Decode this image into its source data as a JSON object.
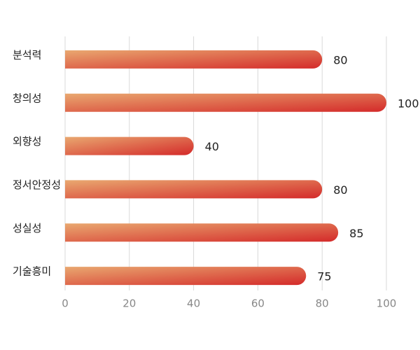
{
  "chart_data": {
    "type": "bar",
    "orientation": "horizontal",
    "categories": [
      "분석력",
      "창의성",
      "외향성",
      "정서안정성",
      "성실성",
      "기술흥미"
    ],
    "values": [
      80,
      100,
      40,
      80,
      85,
      75
    ],
    "gradient": [
      "#e9a870",
      "#d42a2a"
    ],
    "xlim": [
      0,
      100
    ],
    "xticks": [
      0,
      20,
      40,
      60,
      80,
      100
    ],
    "grid": true
  }
}
